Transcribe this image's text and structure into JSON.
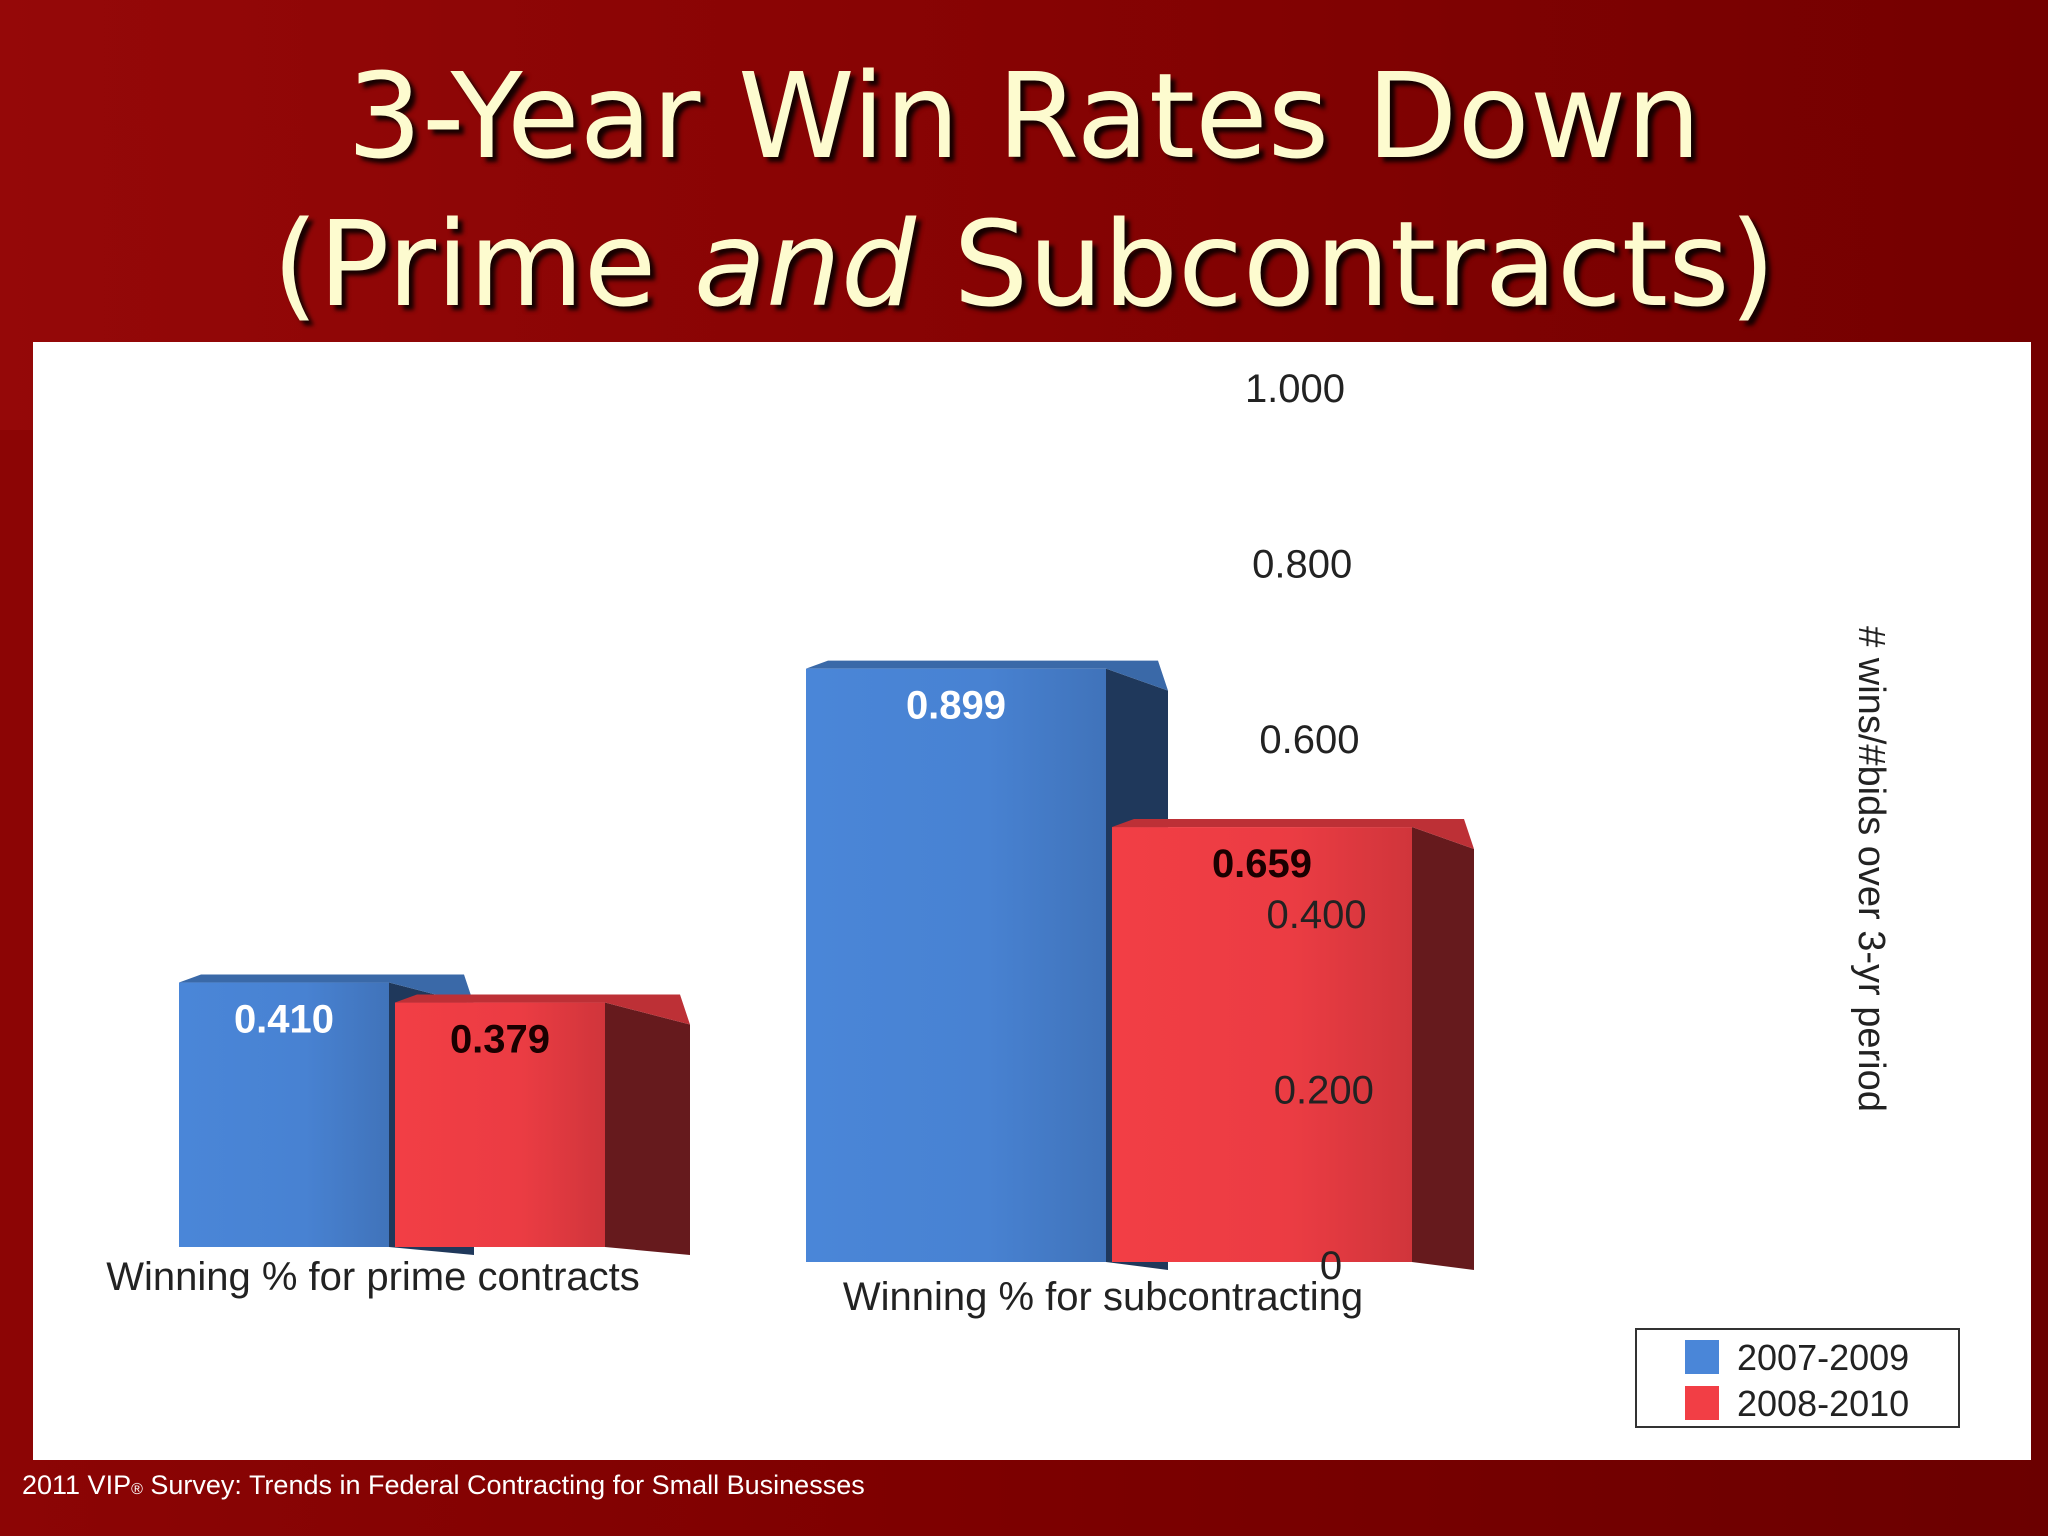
{
  "slide": {
    "title_line1": "3-Year Win Rates Down",
    "title_line2_part1": "(Prime ",
    "title_line2_italic": "and",
    "title_line2_part2": " Subcontracts)",
    "footer_part1": "2011 VIP",
    "footer_mark": "®",
    "footer_part2": " Survey: Trends in Federal Contracting for Small Businesses"
  },
  "chart_data": {
    "type": "bar",
    "categories": [
      "Winning % for prime contracts",
      "Winning % for subcontracting"
    ],
    "series": [
      {
        "name": "2007-2009",
        "values": [
          0.41,
          0.899
        ],
        "color": "#4a86d8",
        "label_color": "#ffffff"
      },
      {
        "name": "2008-2010",
        "values": [
          0.379,
          0.659
        ],
        "color": "#f23e45",
        "label_color": "#1a0000"
      }
    ],
    "data_labels": [
      [
        "0.410",
        "0.899"
      ],
      [
        "0.379",
        "0.659"
      ]
    ],
    "ylabel": "# wins/#bids over 3-yr period",
    "ylim": [
      0,
      1.0
    ],
    "yticks": [
      "0",
      "0.200",
      "0.400",
      "0.600",
      "0.800",
      "1.000"
    ],
    "y_axis_position": "right",
    "grid": false,
    "legend_position": "bottom-right",
    "style": "3d-extruded-bars"
  }
}
